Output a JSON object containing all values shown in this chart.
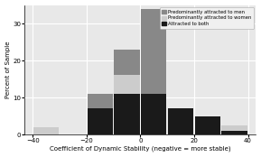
{
  "bin_centers": [
    -35,
    -25,
    -15,
    -5,
    5,
    15,
    25,
    35
  ],
  "bar_width": 9.5,
  "attracted_to_both": [
    0,
    0,
    7,
    11,
    11,
    7,
    5,
    1
  ],
  "predominantly_women": [
    2,
    0,
    0,
    5,
    0,
    0,
    0,
    1.5
  ],
  "predominantly_men": [
    0,
    0,
    4,
    7,
    23,
    0,
    0,
    0
  ],
  "color_both": "#1a1a1a",
  "color_women": "#cccccc",
  "color_men": "#888888",
  "xlabel": "Coefficient of Dynamic Stability (negative = more stable)",
  "ylabel": "Percent of Sample",
  "xticks": [
    -40,
    -20,
    0,
    20,
    40
  ],
  "yticks": [
    0,
    10,
    20,
    30
  ],
  "ylim": [
    0,
    35
  ],
  "xlim": [
    -43,
    43
  ],
  "legend_labels": [
    "Predominantly attracted to men",
    "Predominantly attracted to women",
    "Attracted to both"
  ],
  "legend_colors": [
    "#888888",
    "#cccccc",
    "#1a1a1a"
  ],
  "bg_color": "#e8e8e8",
  "grid_color": "#ffffff"
}
